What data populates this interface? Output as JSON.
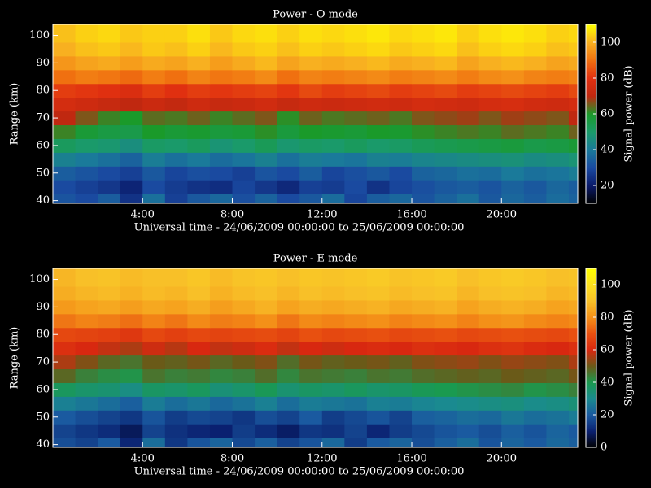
{
  "chart_data": [
    {
      "type": "heatmap",
      "title": "Power - O mode",
      "xlabel": "Universal time - 24/06/2009 00:00:00 to 25/06/2009 00:00:00",
      "ylabel": "Range (km)",
      "colorbar_label": "Signal power (dB)",
      "xbins": [
        0,
        1,
        2,
        3,
        4,
        5,
        6,
        7,
        8,
        9,
        10,
        11,
        12,
        13,
        14,
        15,
        16,
        17,
        18,
        19,
        20,
        21,
        22,
        23,
        23.4
      ],
      "ybins": [
        39,
        42.5,
        47.5,
        52.5,
        57.5,
        62.5,
        67.5,
        72.5,
        77.5,
        82.5,
        87.5,
        92.5,
        97.5,
        104
      ],
      "xlim": [
        0,
        23.4
      ],
      "ylim": [
        39,
        104
      ],
      "xticks": [
        {
          "value": 4,
          "label": "4:00"
        },
        {
          "value": 8,
          "label": "8:00"
        },
        {
          "value": 12,
          "label": "12:00"
        },
        {
          "value": 16,
          "label": "16:00"
        },
        {
          "value": 20,
          "label": "20:00"
        }
      ],
      "yticks": [
        40,
        50,
        60,
        70,
        80,
        90,
        100
      ],
      "zlim": [
        10,
        110
      ],
      "zticks": [
        20,
        40,
        60,
        80,
        100
      ],
      "colorscale": [
        "#000000",
        "#0a1a6a",
        "#1a4aa0",
        "#1a7a9a",
        "#1a9a6a",
        "#1a9a2a",
        "#c02810",
        "#e03010",
        "#f07010",
        "#f8b020",
        "#ffff00"
      ],
      "z": [
        [
          32,
          30,
          34,
          25,
          38,
          28,
          33,
          36,
          31,
          35,
          30,
          33,
          37,
          29,
          34,
          36,
          32,
          35,
          38,
          33,
          36,
          34,
          37,
          35
        ],
        [
          30,
          28,
          26,
          22,
          30,
          27,
          25,
          24,
          29,
          26,
          23,
          28,
          27,
          30,
          25,
          29,
          31,
          33,
          34,
          32,
          35,
          33,
          36,
          34
        ],
        [
          34,
          32,
          30,
          28,
          33,
          29,
          31,
          30,
          28,
          32,
          30,
          34,
          29,
          31,
          33,
          30,
          35,
          36,
          38,
          37,
          40,
          38,
          39,
          41
        ],
        [
          42,
          40,
          38,
          35,
          41,
          38,
          40,
          37,
          39,
          42,
          38,
          41,
          40,
          39,
          42,
          41,
          43,
          44,
          45,
          46,
          47,
          45,
          46,
          48
        ],
        [
          52,
          50,
          49,
          46,
          51,
          50,
          52,
          48,
          50,
          53,
          49,
          51,
          50,
          52,
          50,
          51,
          53,
          54,
          55,
          56,
          57,
          55,
          56,
          58
        ],
        [
          62,
          58,
          56,
          55,
          60,
          58,
          59,
          57,
          58,
          61,
          57,
          60,
          59,
          58,
          60,
          59,
          61,
          62,
          63,
          62,
          64,
          63,
          62,
          65
        ],
        [
          70,
          66,
          62,
          60,
          64,
          63,
          65,
          62,
          64,
          66,
          61,
          65,
          63,
          64,
          65,
          63,
          66,
          67,
          68,
          66,
          68,
          67,
          66,
          70
        ],
        [
          76,
          74,
          72,
          70,
          73,
          71,
          74,
          72,
          73,
          75,
          72,
          74,
          73,
          74,
          75,
          74,
          76,
          75,
          74,
          76,
          77,
          75,
          74,
          76
        ],
        [
          82,
          81,
          80,
          78,
          82,
          80,
          82,
          81,
          82,
          83,
          81,
          84,
          82,
          83,
          84,
          82,
          83,
          84,
          82,
          83,
          84,
          83,
          82,
          84
        ],
        [
          90,
          92,
          91,
          89,
          92,
          90,
          93,
          91,
          92,
          94,
          90,
          93,
          92,
          93,
          94,
          92,
          93,
          94,
          92,
          94,
          95,
          93,
          92,
          93
        ],
        [
          96,
          98,
          99,
          97,
          99,
          98,
          100,
          97,
          99,
          101,
          98,
          100,
          99,
          100,
          101,
          99,
          100,
          101,
          98,
          100,
          101,
          100,
          98,
          99
        ],
        [
          100,
          102,
          103,
          101,
          103,
          102,
          104,
          101,
          103,
          104,
          102,
          104,
          103,
          104,
          105,
          103,
          104,
          105,
          102,
          104,
          105,
          104,
          102,
          103
        ],
        [
          102,
          104,
          105,
          103,
          104,
          104,
          106,
          103,
          105,
          106,
          104,
          106,
          105,
          106,
          107,
          105,
          106,
          107,
          104,
          106,
          107,
          106,
          104,
          105
        ]
      ]
    },
    {
      "type": "heatmap",
      "title": "Power - E mode",
      "xlabel": "Universal time - 24/06/2009 00:00:00 to 25/06/2009 00:00:00",
      "ylabel": "Range (km)",
      "colorbar_label": "Signal power (dB)",
      "xbins": [
        0,
        1,
        2,
        3,
        4,
        5,
        6,
        7,
        8,
        9,
        10,
        11,
        12,
        13,
        14,
        15,
        16,
        17,
        18,
        19,
        20,
        21,
        22,
        23,
        23.4
      ],
      "ybins": [
        39,
        42.5,
        47.5,
        52.5,
        57.5,
        62.5,
        67.5,
        72.5,
        77.5,
        82.5,
        87.5,
        92.5,
        97.5,
        104
      ],
      "xlim": [
        0,
        23.4
      ],
      "ylim": [
        39,
        104
      ],
      "xticks": [
        {
          "value": 4,
          "label": "4:00"
        },
        {
          "value": 8,
          "label": "8:00"
        },
        {
          "value": 12,
          "label": "12:00"
        },
        {
          "value": 16,
          "label": "16:00"
        },
        {
          "value": 20,
          "label": "20:00"
        }
      ],
      "yticks": [
        40,
        50,
        60,
        70,
        80,
        90,
        100
      ],
      "zlim": [
        0,
        110
      ],
      "zticks": [
        0,
        20,
        40,
        60,
        80,
        100
      ],
      "colorscale": [
        "#000000",
        "#0a2070",
        "#1a5aa0",
        "#1a8a90",
        "#1a9a50",
        "#6a5a18",
        "#d82810",
        "#e85010",
        "#f49018",
        "#f8c028",
        "#fce020",
        "#ffff00"
      ],
      "z": [
        [
          18,
          16,
          20,
          11,
          24,
          14,
          19,
          22,
          17,
          21,
          16,
          19,
          23,
          15,
          20,
          22,
          18,
          21,
          24,
          19,
          22,
          20,
          23,
          21
        ],
        [
          16,
          14,
          12,
          8,
          16,
          13,
          11,
          10,
          15,
          12,
          9,
          14,
          13,
          16,
          11,
          15,
          17,
          19,
          20,
          18,
          21,
          19,
          22,
          20
        ],
        [
          20,
          18,
          16,
          14,
          19,
          15,
          17,
          16,
          14,
          18,
          16,
          20,
          15,
          17,
          19,
          16,
          21,
          22,
          24,
          23,
          26,
          24,
          25,
          27
        ],
        [
          28,
          26,
          24,
          21,
          27,
          24,
          26,
          23,
          25,
          28,
          24,
          27,
          26,
          25,
          28,
          27,
          29,
          30,
          31,
          32,
          33,
          31,
          32,
          34
        ],
        [
          38,
          36,
          35,
          32,
          37,
          36,
          38,
          34,
          36,
          39,
          35,
          37,
          36,
          38,
          36,
          37,
          39,
          40,
          41,
          42,
          43,
          41,
          42,
          44
        ],
        [
          48,
          44,
          42,
          41,
          46,
          44,
          45,
          43,
          44,
          47,
          43,
          46,
          45,
          44,
          46,
          45,
          47,
          48,
          49,
          48,
          50,
          49,
          48,
          51
        ],
        [
          56,
          52,
          48,
          46,
          50,
          49,
          51,
          48,
          50,
          52,
          47,
          51,
          49,
          50,
          51,
          49,
          52,
          53,
          54,
          52,
          54,
          53,
          52,
          56
        ],
        [
          62,
          60,
          58,
          56,
          59,
          57,
          60,
          58,
          59,
          61,
          58,
          60,
          59,
          60,
          61,
          60,
          62,
          61,
          60,
          62,
          63,
          61,
          60,
          62
        ],
        [
          68,
          67,
          66,
          64,
          68,
          66,
          68,
          67,
          68,
          69,
          67,
          70,
          68,
          69,
          70,
          68,
          69,
          70,
          68,
          69,
          70,
          69,
          68,
          70
        ],
        [
          76,
          78,
          77,
          75,
          78,
          76,
          79,
          77,
          78,
          80,
          76,
          79,
          78,
          79,
          80,
          78,
          79,
          80,
          78,
          80,
          81,
          79,
          78,
          79
        ],
        [
          82,
          84,
          85,
          83,
          85,
          84,
          86,
          83,
          85,
          87,
          84,
          86,
          85,
          86,
          87,
          85,
          86,
          87,
          84,
          86,
          87,
          86,
          84,
          85
        ],
        [
          86,
          88,
          89,
          87,
          89,
          88,
          90,
          87,
          89,
          90,
          88,
          90,
          89,
          90,
          91,
          89,
          90,
          91,
          88,
          90,
          91,
          90,
          88,
          89
        ],
        [
          88,
          90,
          91,
          89,
          90,
          90,
          92,
          89,
          91,
          92,
          90,
          92,
          91,
          92,
          93,
          91,
          92,
          93,
          90,
          92,
          93,
          92,
          90,
          91
        ]
      ]
    }
  ]
}
